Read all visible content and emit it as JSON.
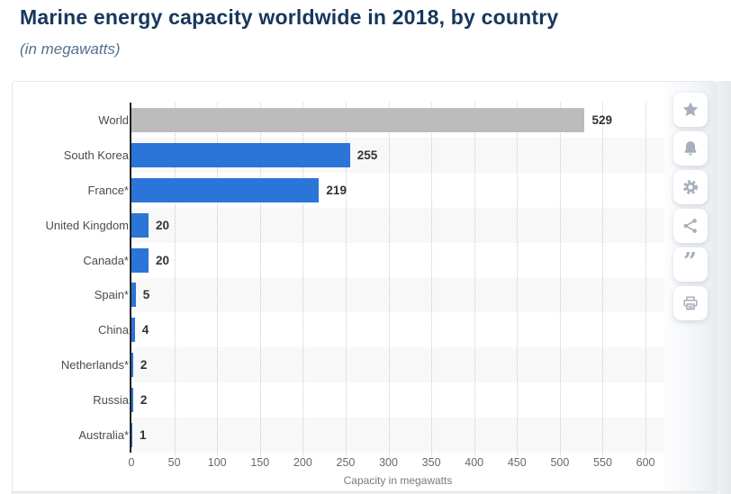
{
  "header": {
    "title": "Marine energy capacity worldwide in 2018, by country",
    "subtitle": "(in megawatts)"
  },
  "chart_data": {
    "type": "bar",
    "orientation": "horizontal",
    "title": "Marine energy capacity worldwide in 2018, by country",
    "subtitle": "(in megawatts)",
    "categories": [
      "World",
      "South Korea",
      "France*",
      "United Kingdom",
      "Canada*",
      "Spain*",
      "China",
      "Netherlands*",
      "Russia",
      "Australia*"
    ],
    "values": [
      529,
      255,
      219,
      20,
      20,
      5,
      4,
      2,
      2,
      1
    ],
    "bar_colors": [
      "#bcbcbc",
      "#2b74d8",
      "#2b74d8",
      "#2b74d8",
      "#2b74d8",
      "#2b74d8",
      "#2b74d8",
      "#2b74d8",
      "#2b74d8",
      "#2b74d8"
    ],
    "xlabel": "Capacity in megawatts",
    "ylabel": "",
    "xlim": [
      0,
      622
    ],
    "x_ticks": [
      0,
      50,
      100,
      150,
      200,
      250,
      300,
      350,
      400,
      450,
      500,
      550,
      600
    ],
    "grid": "vertical-dotted",
    "legend": "none",
    "row_alt_color": "#f8f8f8"
  },
  "sidebar": {
    "buttons": [
      {
        "name": "favorite-button",
        "icon": "star-icon"
      },
      {
        "name": "alerts-button",
        "icon": "bell-icon"
      },
      {
        "name": "settings-button",
        "icon": "gear-icon"
      },
      {
        "name": "share-button",
        "icon": "share-icon"
      },
      {
        "name": "citation-button",
        "icon": "quote-icon"
      },
      {
        "name": "print-button",
        "icon": "print-icon"
      }
    ]
  },
  "colors": {
    "title_text": "#17375c",
    "subtitle_text": "#53718e",
    "bar_blue": "#2b74d8",
    "bar_gray": "#bcbcbc",
    "axis_line": "#222222",
    "gridline": "#c9c9c9",
    "category_text": "#4c4c4c",
    "value_text": "#333333",
    "tick_text": "#696969",
    "icon_gray": "#a6afbb"
  }
}
